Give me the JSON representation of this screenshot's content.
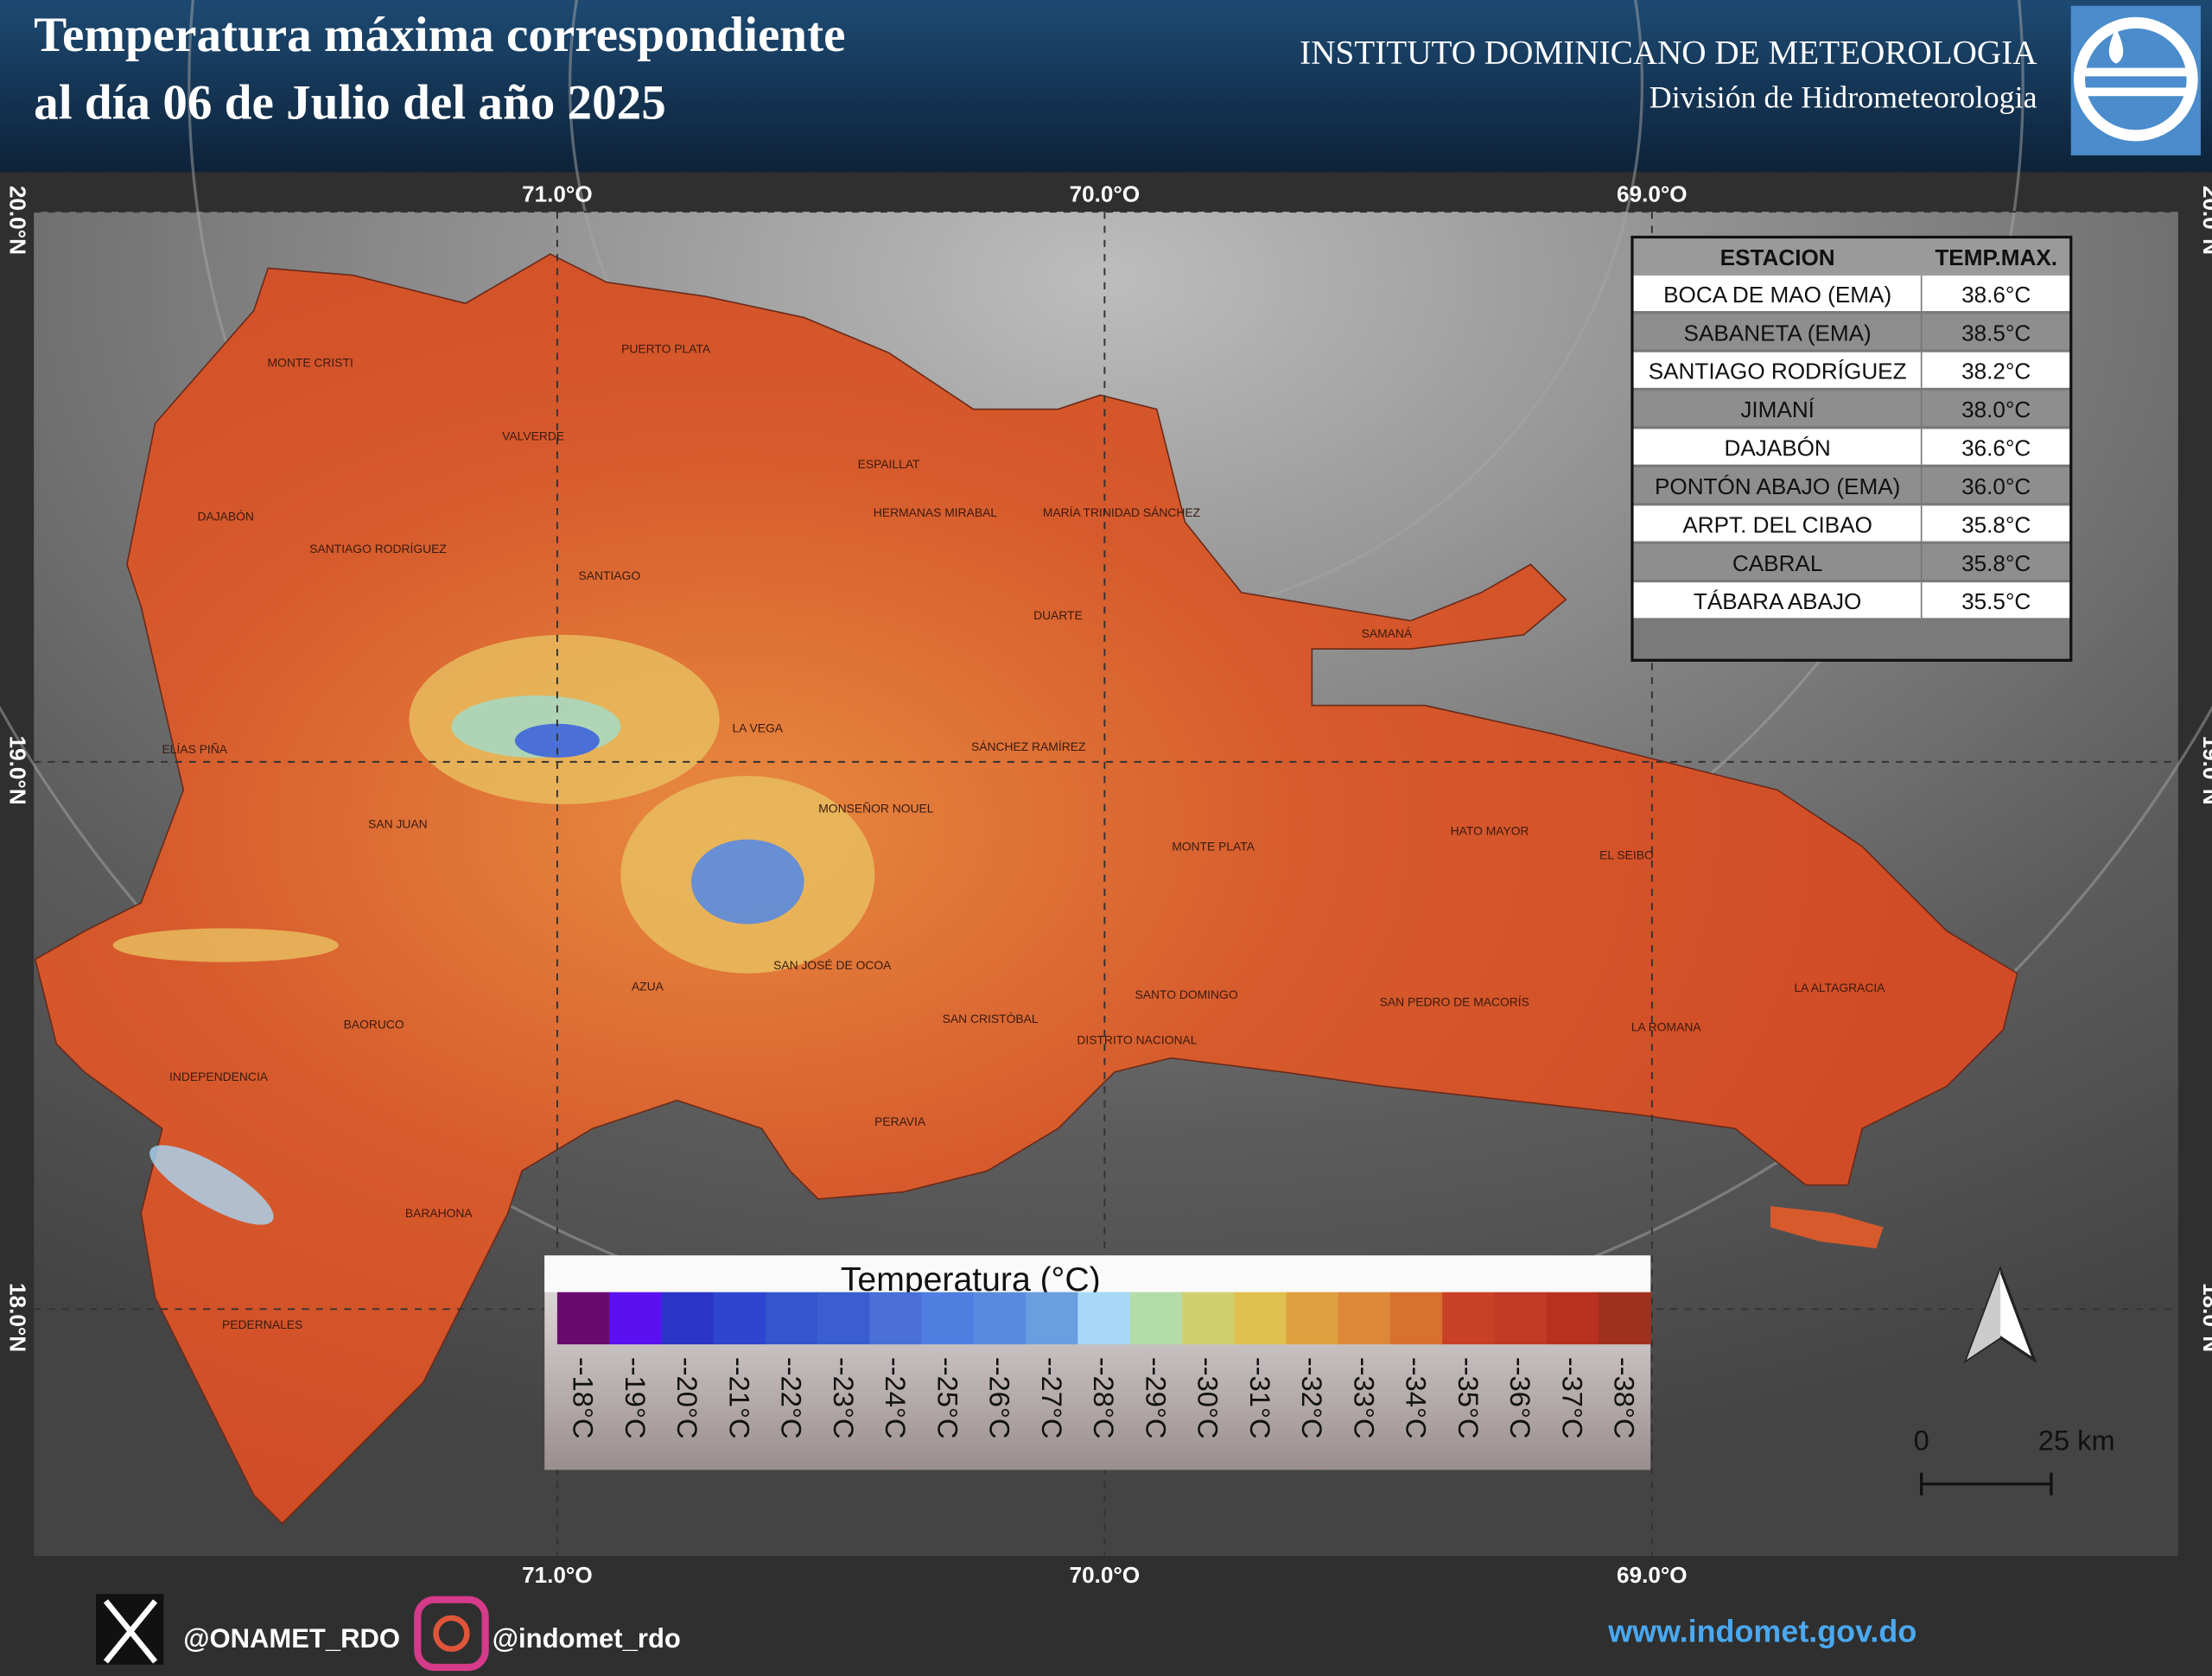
{
  "header": {
    "title_lines": [
      "Temperatura máxima correspondiente",
      "al día 06 de Julio del año 2025"
    ],
    "institute": "INSTITUTO DOMINICANO DE METEOROLOGIA",
    "division": "División de Hidrometeorologia"
  },
  "map": {
    "longitude_labels": [
      "71.0°O",
      "70.0°O",
      "69.0°O"
    ],
    "latitude_labels": [
      "20.0°N",
      "19.0°N",
      "18.0°N"
    ],
    "provinces": [
      "MONTE CRISTI",
      "PUERTO PLATA",
      "VALVERDE",
      "ESPAILLAT",
      "HERMANAS MIRABAL",
      "MARÍA TRINIDAD SÁNCHEZ",
      "DAJABÓN",
      "SANTIAGO RODRÍGUEZ",
      "SANTIAGO",
      "DUARTE",
      "SAMANÁ",
      "ELÍAS PIÑA",
      "LA VEGA",
      "SÁNCHEZ RAMÍREZ",
      "MONSEÑOR NOUEL",
      "SAN JUAN",
      "MONTE PLATA",
      "HATO MAYOR",
      "EL SEIBO",
      "SAN JOSÉ DE OCOA",
      "AZUA",
      "SANTO DOMINGO",
      "SAN PEDRO DE MACORÍS",
      "LA ALTAGRACIA",
      "SAN CRISTÓBAL",
      "DISTRITO NACIONAL",
      "BAORUCO",
      "LA ROMANA",
      "INDEPENDENCIA",
      "PERAVIA",
      "BARAHONA",
      "PEDERNALES"
    ]
  },
  "station_table": {
    "columns": [
      "ESTACION",
      "TEMP.MAX."
    ],
    "rows": [
      [
        "BOCA DE MAO (EMA)",
        "38.6°C"
      ],
      [
        "SABANETA (EMA)",
        "38.5°C"
      ],
      [
        "SANTIAGO RODRÍGUEZ",
        "38.2°C"
      ],
      [
        "JIMANÍ",
        "38.0°C"
      ],
      [
        "DAJABÓN",
        "36.6°C"
      ],
      [
        "PONTÓN ABAJO (EMA)",
        "36.0°C"
      ],
      [
        "ARPT. DEL CIBAO",
        "35.8°C"
      ],
      [
        "CABRAL",
        "35.8°C"
      ],
      [
        "TÁBARA ABAJO",
        "35.5°C"
      ]
    ]
  },
  "legend": {
    "title": "Temperatura (°C)",
    "items": [
      {
        "label": "--18°C",
        "color": "#6b0a6e"
      },
      {
        "label": "--19°C",
        "color": "#5a10f0"
      },
      {
        "label": "--20°C",
        "color": "#2a35c8"
      },
      {
        "label": "--21°C",
        "color": "#2e45d0"
      },
      {
        "label": "--22°C",
        "color": "#3456cc"
      },
      {
        "label": "--23°C",
        "color": "#3a5ed0"
      },
      {
        "label": "--24°C",
        "color": "#4a70d8"
      },
      {
        "label": "--25°C",
        "color": "#4f7ee0"
      },
      {
        "label": "--26°C",
        "color": "#5a8ae0"
      },
      {
        "label": "--27°C",
        "color": "#6a9ee0"
      },
      {
        "label": "--28°C",
        "color": "#a8d8f8"
      },
      {
        "label": "--29°C",
        "color": "#b4dca8"
      },
      {
        "label": "--30°C",
        "color": "#cfcf70"
      },
      {
        "label": "--31°C",
        "color": "#e0c050"
      },
      {
        "label": "--32°C",
        "color": "#e0a040"
      },
      {
        "label": "--33°C",
        "color": "#dc8838"
      },
      {
        "label": "--34°C",
        "color": "#d87030"
      },
      {
        "label": "--35°C",
        "color": "#c84025"
      },
      {
        "label": "--36°C",
        "color": "#c03a25"
      },
      {
        "label": "--37°C",
        "color": "#b83020"
      },
      {
        "label": "--38°C",
        "color": "#a0301e"
      }
    ]
  },
  "scale_bar": {
    "labels": [
      "0",
      "25 km"
    ]
  },
  "footer": {
    "twitter": "@ONAMET_RDO",
    "instagram": "@indomet_rdo",
    "website": "www.indomet.gov.do"
  }
}
